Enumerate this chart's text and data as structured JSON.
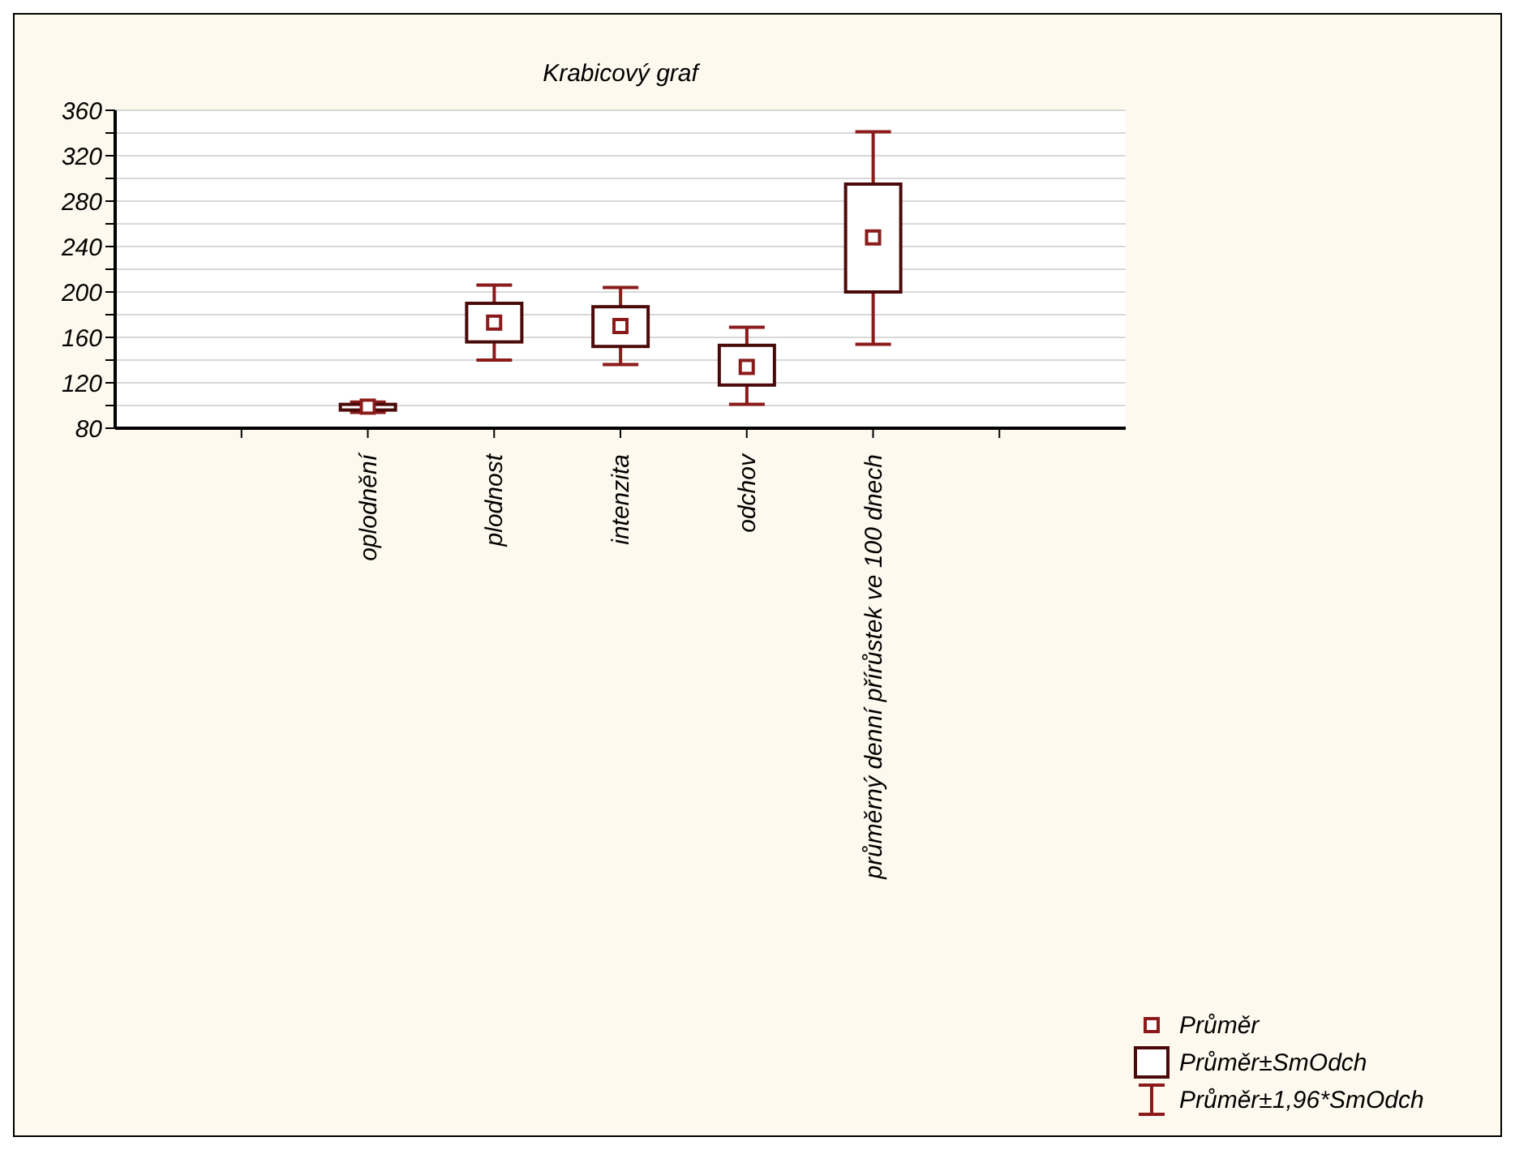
{
  "chart_data": {
    "type": "box",
    "title": "Krabicový graf",
    "categories": [
      null,
      "oplodnění",
      "plodnost",
      "intenzita",
      "odchov",
      "průměrný denní přírůstek ve 100 dnech",
      null
    ],
    "series": [
      {
        "name": "Průměr",
        "type": "scatter",
        "marker": "square",
        "color": "#8b1a1a",
        "values": [
          null,
          99,
          173,
          170,
          134,
          248,
          null
        ]
      },
      {
        "name": "Průměr±SmOdch",
        "type": "box",
        "color": "#4a0a0a",
        "boxes": [
          null,
          {
            "low": 94,
            "q1": 96,
            "q3": 101,
            "high": 103
          },
          {
            "low": 140,
            "q1": 156,
            "q3": 190,
            "high": 206
          },
          {
            "low": 136,
            "q1": 152,
            "q3": 187,
            "high": 204
          },
          {
            "low": 101,
            "q1": 118,
            "q3": 153,
            "high": 169
          },
          {
            "low": 154,
            "q1": 200,
            "q3": 295,
            "high": 341
          },
          null
        ]
      }
    ],
    "annotations": [
      "Průměr±1,96*SmOdch"
    ],
    "ylim": [
      80,
      360
    ],
    "yticks": [
      80,
      {
        "value": 100,
        "label": null
      },
      120,
      {
        "value": 140,
        "label": null
      },
      160,
      {
        "value": 180,
        "label": null
      },
      200,
      {
        "value": 220,
        "label": null
      },
      240,
      {
        "value": 260,
        "label": null
      },
      280,
      {
        "value": 300,
        "label": null
      },
      320,
      {
        "value": 340,
        "label": null
      },
      360
    ],
    "grid": "y",
    "legend": "bottom right"
  }
}
